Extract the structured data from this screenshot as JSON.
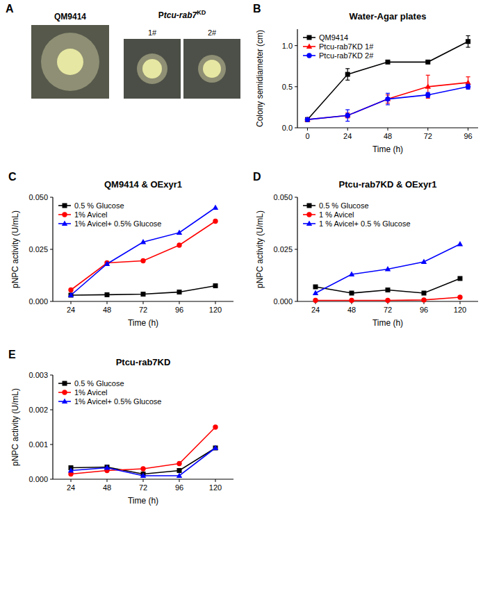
{
  "panel_a": {
    "panel_label": "A",
    "strain_label": {
      "p": "P",
      "i": "tcu-rab7",
      "s": "KD"
    },
    "images": [
      {
        "label": "QM9414"
      },
      {
        "label": "1#"
      },
      {
        "label": "2#"
      }
    ]
  },
  "chart_data": [
    {
      "type": "line",
      "panel_label": "B",
      "title": "Water-Agar plates",
      "x_label": "Time (h)",
      "y_label": "Colony semidiameter (cm)",
      "x": [
        0,
        24,
        48,
        72,
        96
      ],
      "xlim": [
        -6,
        102
      ],
      "xticks": [
        0,
        24,
        48,
        72,
        96
      ],
      "ylim": [
        0,
        1.2
      ],
      "yticks": [
        {
          "value": 0,
          "label": "0.0"
        },
        0.5,
        {
          "value": 1,
          "label": "1.0"
        }
      ],
      "legend": "upper left",
      "series": [
        {
          "name": "QM9414",
          "color": "#000000",
          "marker": "square",
          "values": [
            0.1,
            0.65,
            0.8,
            0.8,
            1.05
          ],
          "errors": [
            0,
            0.07,
            0,
            0,
            0.07
          ]
        },
        {
          "name": "Ptcu-rab7KD 1#",
          "color": "#ff0000",
          "marker": "triangle",
          "values": [
            0.1,
            0.15,
            0.35,
            0.5,
            0.55
          ],
          "errors": [
            0,
            0.03,
            0.05,
            0.14,
            0.07
          ]
        },
        {
          "name": "Ptcu-rab7KD 2#",
          "color": "#0000ff",
          "marker": "circle",
          "values": [
            0.1,
            0.15,
            0.35,
            0.4,
            0.5
          ],
          "errors": [
            0,
            0.07,
            0.07,
            0.03,
            0.03
          ]
        }
      ]
    },
    {
      "type": "line",
      "panel_label": "C",
      "title": "QM9414 & OExyr1",
      "x_label": "Time (h)",
      "y_label": "pNPC activity (U/mL)",
      "x": [
        24,
        48,
        72,
        96,
        120
      ],
      "xlim": [
        12,
        132
      ],
      "xticks": [
        24,
        48,
        72,
        96,
        120
      ],
      "ylim": [
        0,
        0.05
      ],
      "yticks": [
        {
          "value": 0,
          "label": "0.000"
        },
        0.025,
        {
          "value": 0.05,
          "label": "0.050"
        }
      ],
      "legend": "upper left",
      "series": [
        {
          "name": "0.5 % Glucose",
          "color": "#000000",
          "marker": "square",
          "values": [
            0.003,
            0.0032,
            0.0035,
            0.0045,
            0.0075
          ]
        },
        {
          "name": "1% Avicel",
          "color": "#ff0000",
          "marker": "circle",
          "values": [
            0.0055,
            0.0185,
            0.0195,
            0.027,
            0.0385
          ]
        },
        {
          "name": "1% Avicel+ 0.5% Glucose",
          "color": "#0000ff",
          "marker": "triangle",
          "values": [
            0.003,
            0.018,
            0.0285,
            0.033,
            0.045
          ]
        }
      ]
    },
    {
      "type": "line",
      "panel_label": "D",
      "title": "Ptcu-rab7KD & OExyr1",
      "x_label": "Time (h)",
      "y_label": "pNPC activity (U/mL)",
      "x": [
        24,
        48,
        72,
        96,
        120
      ],
      "xlim": [
        12,
        132
      ],
      "xticks": [
        24,
        48,
        72,
        96,
        120
      ],
      "ylim": [
        0,
        0.05
      ],
      "yticks": [
        {
          "value": 0,
          "label": "0.000"
        },
        0.025,
        {
          "value": 0.05,
          "label": "0.050"
        }
      ],
      "legend": "upper left",
      "series": [
        {
          "name": "0.5 % Glucose",
          "color": "#000000",
          "marker": "square",
          "values": [
            0.007,
            0.004,
            0.0055,
            0.004,
            0.011
          ]
        },
        {
          "name": "1 % Avicel",
          "color": "#ff0000",
          "marker": "circle",
          "values": [
            0.0005,
            0.0005,
            0.0005,
            0.0007,
            0.002
          ]
        },
        {
          "name": "1 % Avicel+ 0.5 % Glucose",
          "color": "#0000ff",
          "marker": "triangle",
          "values": [
            0.004,
            0.013,
            0.0155,
            0.019,
            0.0275
          ]
        }
      ]
    },
    {
      "type": "line",
      "panel_label": "E",
      "title": "Ptcu-rab7KD",
      "x_label": "Time (h)",
      "y_label": "pNPC activity (U/mL)",
      "x": [
        24,
        48,
        72,
        96,
        120
      ],
      "xlim": [
        12,
        132
      ],
      "xticks": [
        24,
        48,
        72,
        96,
        120
      ],
      "ylim": [
        0,
        0.003
      ],
      "yticks": [
        {
          "value": 0,
          "label": "0.000"
        },
        0.001,
        0.002,
        0.003
      ],
      "legend": "upper left",
      "series": [
        {
          "name": "0.5 % Glucose",
          "color": "#000000",
          "marker": "square",
          "values": [
            0.00033,
            0.00035,
            0.00015,
            0.00025,
            0.0009
          ]
        },
        {
          "name": "1% Avicel",
          "color": "#ff0000",
          "marker": "circle",
          "values": [
            0.00015,
            0.00025,
            0.0003,
            0.00045,
            0.0015
          ]
        },
        {
          "name": "1% Avicel+ 0.5% Glucose",
          "color": "#0000ff",
          "marker": "triangle",
          "values": [
            0.00025,
            0.00033,
            0.0001,
            0.0001,
            0.0009
          ]
        }
      ]
    }
  ]
}
